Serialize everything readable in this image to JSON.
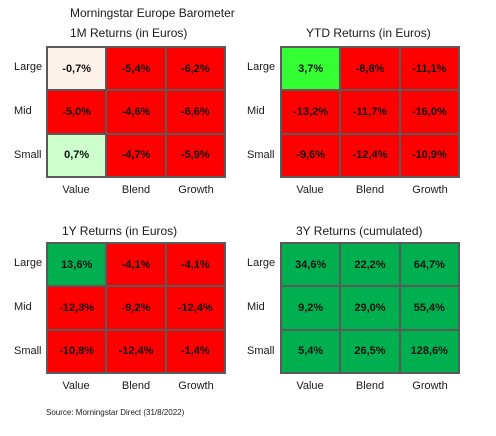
{
  "title": "Morningstar Europe Barometer",
  "source": "Source: Morningstar Direct (31/8/2022)",
  "colors": {
    "red": "#ff0000",
    "dark_green": "#00b050",
    "bright_green": "#33ff33",
    "light_green": "#ccffcc",
    "very_light": "#fdf1ec"
  },
  "chart_data": [
    {
      "type": "heatmap",
      "title": "1M Returns (in Euros)",
      "rows": [
        "Large",
        "Mid",
        "Small"
      ],
      "columns": [
        "Value",
        "Blend",
        "Growth"
      ],
      "values": [
        [
          "-0,7%",
          "-5,4%",
          "-6,2%"
        ],
        [
          "-5,0%",
          "-4,6%",
          "-6,6%"
        ],
        [
          "0,7%",
          "-4,7%",
          "-5,9%"
        ]
      ],
      "fills": [
        [
          "#fdf1ec",
          "#ff0000",
          "#ff0000"
        ],
        [
          "#ff0000",
          "#ff0000",
          "#ff0000"
        ],
        [
          "#ccffcc",
          "#ff0000",
          "#ff0000"
        ]
      ]
    },
    {
      "type": "heatmap",
      "title": "YTD Returns (in Euros)",
      "rows": [
        "Large",
        "Mid",
        "Small"
      ],
      "columns": [
        "Value",
        "Blend",
        "Growth"
      ],
      "values": [
        [
          "3,7%",
          "-8,8%",
          "-11,1%"
        ],
        [
          "-13,2%",
          "-11,7%",
          "-16,0%"
        ],
        [
          "-9,6%",
          "-12,4%",
          "-10,9%"
        ]
      ],
      "fills": [
        [
          "#33ff33",
          "#ff0000",
          "#ff0000"
        ],
        [
          "#ff0000",
          "#ff0000",
          "#ff0000"
        ],
        [
          "#ff0000",
          "#ff0000",
          "#ff0000"
        ]
      ]
    },
    {
      "type": "heatmap",
      "title": "1Y Returns (in Euros)",
      "rows": [
        "Large",
        "Mid",
        "Small"
      ],
      "columns": [
        "Value",
        "Blend",
        "Growth"
      ],
      "values": [
        [
          "13,6%",
          "-4,1%",
          "-4,1%"
        ],
        [
          "-12,3%",
          "-9,2%",
          "-12,4%"
        ],
        [
          "-10,8%",
          "-12,4%",
          "-1,4%"
        ]
      ],
      "fills": [
        [
          "#00b050",
          "#ff0000",
          "#ff0000"
        ],
        [
          "#ff0000",
          "#ff0000",
          "#ff0000"
        ],
        [
          "#ff0000",
          "#ff0000",
          "#ff0000"
        ]
      ]
    },
    {
      "type": "heatmap",
      "title": "3Y Returns (cumulated)",
      "rows": [
        "Large",
        "Mid",
        "Small"
      ],
      "columns": [
        "Value",
        "Blend",
        "Growth"
      ],
      "values": [
        [
          "34,6%",
          "22,2%",
          "64,7%"
        ],
        [
          "9,2%",
          "29,0%",
          "55,4%"
        ],
        [
          "5,4%",
          "26,5%",
          "128,6%"
        ]
      ],
      "fills": [
        [
          "#00b050",
          "#00b050",
          "#00b050"
        ],
        [
          "#00b050",
          "#00b050",
          "#00b050"
        ],
        [
          "#00b050",
          "#00b050",
          "#00b050"
        ]
      ]
    }
  ]
}
